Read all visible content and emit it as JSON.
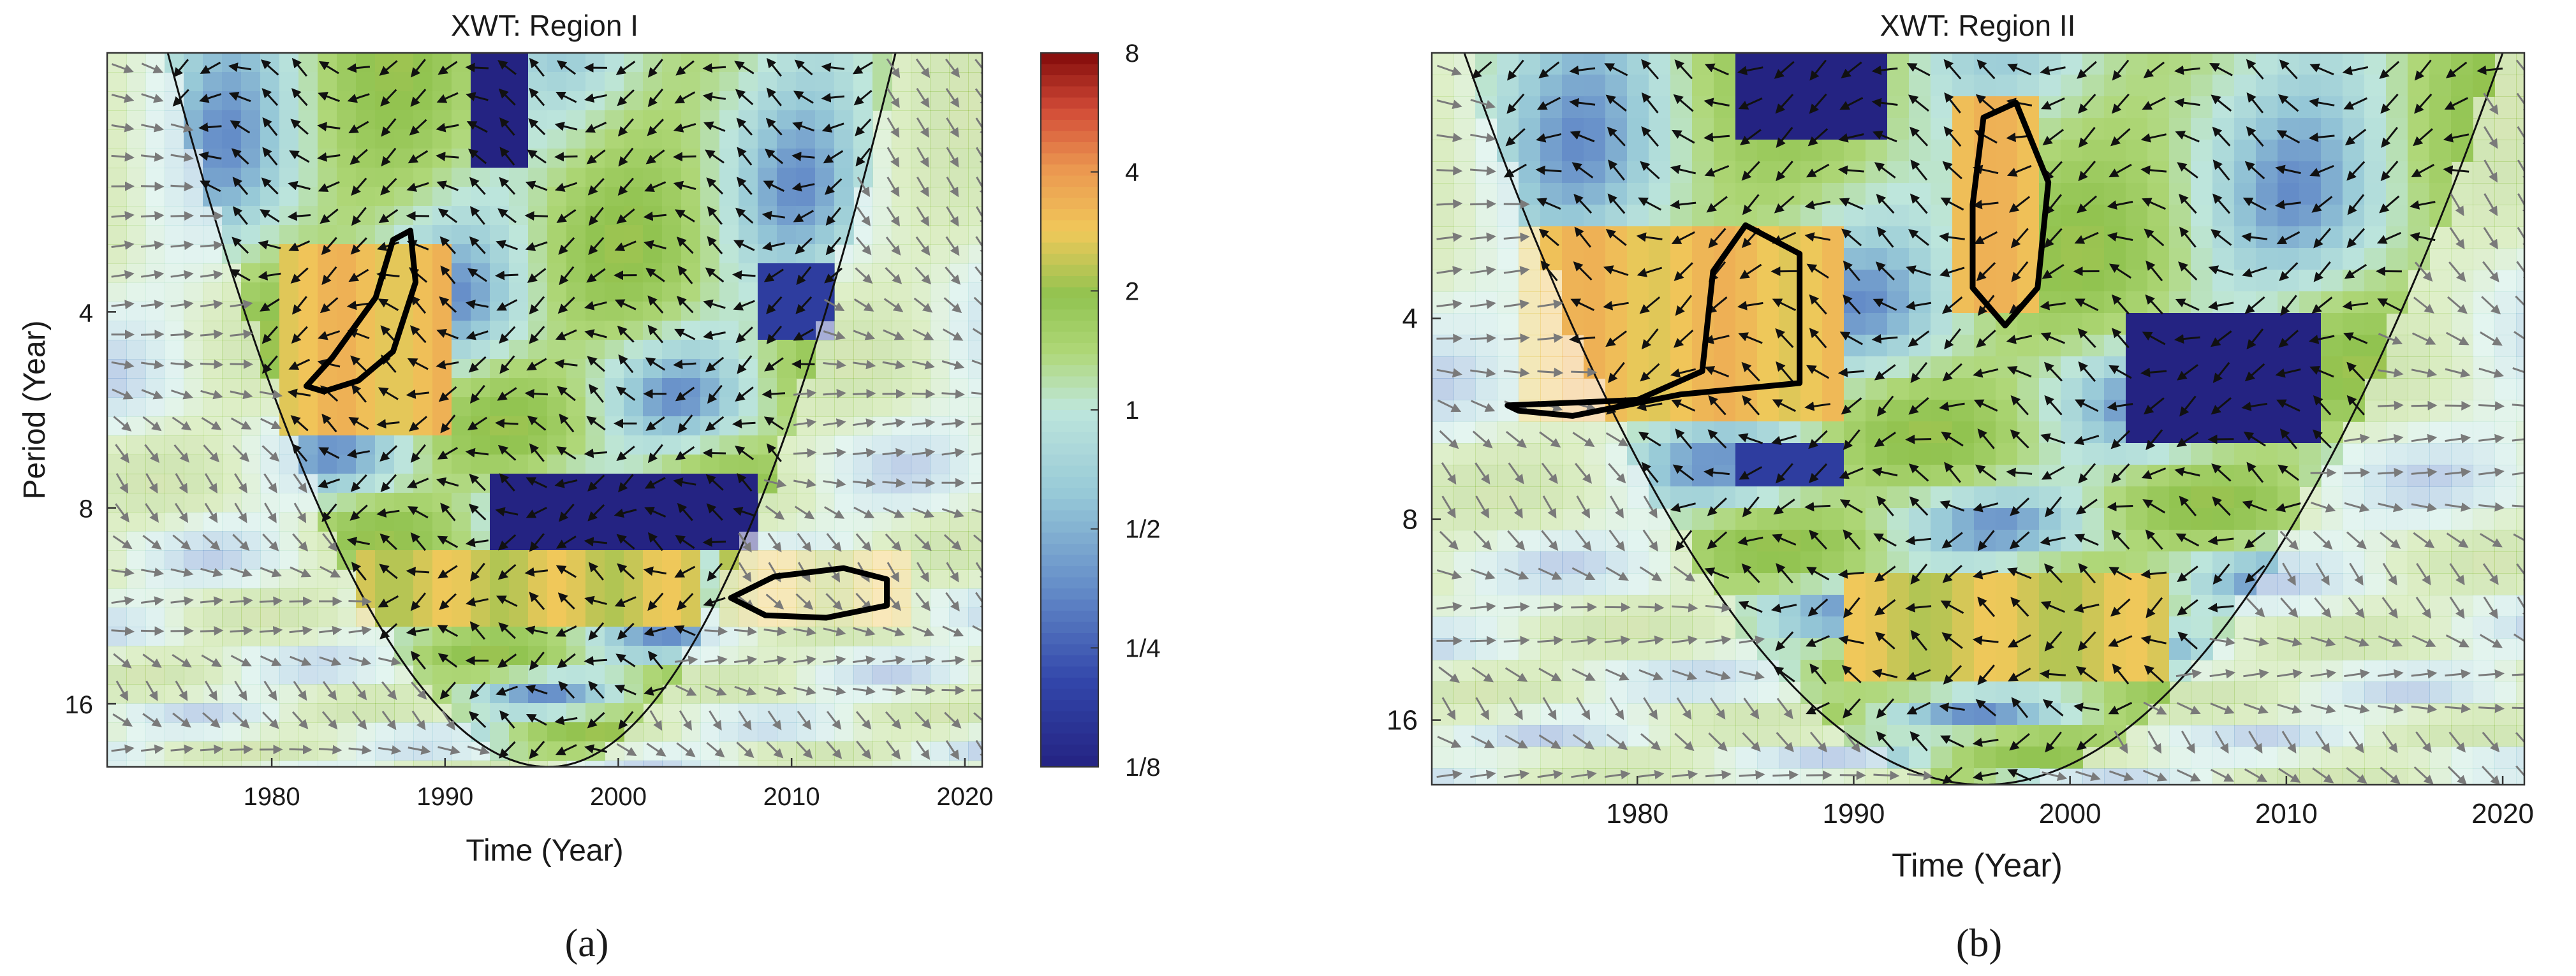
{
  "chart_data": [
    {
      "type": "heatmap",
      "panel_label": "(a)",
      "title": "XWT: Region I",
      "xlabel": "Time (Year)",
      "ylabel": "Period (Year)",
      "xlim": [
        1970.5,
        2021
      ],
      "ylim": [
        1.6,
        20
      ],
      "y_scale": "log2",
      "x_ticks": [
        1980,
        1990,
        2000,
        2010,
        2020
      ],
      "y_ticks": [
        4,
        8,
        16
      ],
      "colorbar": {
        "scale": "log2",
        "range": [
          0.125,
          8
        ],
        "tick_labels": [
          "8",
          "4",
          "2",
          "1",
          "1/2",
          "1/4",
          "1/8"
        ],
        "tick_values": [
          8,
          4,
          2,
          1,
          0.5,
          0.25,
          0.125
        ]
      },
      "cone_of_influence": {
        "apex_year": 1996,
        "apex_period": 20,
        "left_edge_year": 1974,
        "right_edge_year": 2016
      },
      "significance_contours": [
        {
          "points": [
            [
              1982,
              5.2
            ],
            [
              1983.5,
              4.7
            ],
            [
              1986,
              3.8
            ],
            [
              1987,
              3.1
            ],
            [
              1988,
              3.0
            ],
            [
              1988.3,
              3.6
            ],
            [
              1987,
              4.6
            ],
            [
              1985,
              5.1
            ],
            [
              1983,
              5.3
            ]
          ]
        },
        {
          "points": [
            [
              2006.5,
              11.0
            ],
            [
              2009,
              10.2
            ],
            [
              2013,
              9.9
            ],
            [
              2015.5,
              10.3
            ],
            [
              2015.5,
              11.3
            ],
            [
              2012,
              11.8
            ],
            [
              2008.5,
              11.7
            ]
          ]
        }
      ],
      "high_power_regions": [
        {
          "year": [
            1980,
            1990
          ],
          "period": [
            3.2,
            6.0
          ],
          "power": 3
        },
        {
          "year": [
            1985,
            2005
          ],
          "period": [
            9.5,
            12.5
          ],
          "power": 2.5
        },
        {
          "year": [
            2006,
            2017
          ],
          "period": [
            9.5,
            12.5
          ],
          "power": 2.5
        }
      ],
      "low_power_regions": [
        {
          "year": [
            1991,
            1995
          ],
          "period": [
            1.6,
            2.4
          ],
          "power": 0.125
        },
        {
          "year": [
            1993,
            2008
          ],
          "period": [
            7.0,
            9.5
          ],
          "power": 0.125
        },
        {
          "year": [
            2008,
            2013
          ],
          "period": [
            3.3,
            4.3
          ],
          "power": 0.18
        }
      ],
      "phase_arrows": {
        "inside_coi": "black",
        "outside_coi": "gray"
      }
    },
    {
      "type": "heatmap",
      "panel_label": "(b)",
      "title": "XWT: Region II",
      "xlabel": "Time (Year)",
      "xlim": [
        1970.5,
        2021
      ],
      "ylim": [
        1.6,
        20
      ],
      "y_scale": "log2",
      "x_ticks": [
        1980,
        1990,
        2000,
        2010,
        2020
      ],
      "y_ticks": [
        4,
        8,
        16
      ],
      "cone_of_influence": {
        "apex_year": 1996,
        "apex_period": 20,
        "left_edge_year": 1972,
        "right_edge_year": 2020
      },
      "significance_contours": [
        {
          "points": [
            [
              1974,
              5.4
            ],
            [
              1980,
              5.3
            ],
            [
              1983,
              4.8
            ],
            [
              1983.5,
              3.4
            ],
            [
              1985,
              2.9
            ],
            [
              1987.5,
              3.2
            ],
            [
              1987.5,
              5.0
            ],
            [
              1982,
              5.2
            ],
            [
              1977,
              5.6
            ],
            [
              1974.5,
              5.5
            ]
          ]
        },
        {
          "points": [
            [
              1995.5,
              2.7
            ],
            [
              1996,
              2.0
            ],
            [
              1997.5,
              1.9
            ],
            [
              1999,
              2.5
            ],
            [
              1998.5,
              3.6
            ],
            [
              1997,
              4.1
            ],
            [
              1995.5,
              3.6
            ]
          ]
        }
      ],
      "high_power_regions": [
        {
          "year": [
            1975,
            1990
          ],
          "period": [
            3.0,
            5.5
          ],
          "power": 3
        },
        {
          "year": [
            1995,
            1999
          ],
          "period": [
            1.9,
            4.0
          ],
          "power": 3
        },
        {
          "year": [
            1990,
            2005
          ],
          "period": [
            9.5,
            14.0
          ],
          "power": 2.5
        }
      ],
      "low_power_regions": [
        {
          "year": [
            1985,
            1992
          ],
          "period": [
            1.6,
            2.2
          ],
          "power": 0.125
        },
        {
          "year": [
            2003,
            2012
          ],
          "period": [
            3.8,
            6.0
          ],
          "power": 0.125
        },
        {
          "year": [
            1985,
            1990
          ],
          "period": [
            6.2,
            7.2
          ],
          "power": 0.18
        }
      ],
      "phase_arrows": {
        "inside_coi": "black",
        "outside_coi": "gray"
      }
    }
  ]
}
